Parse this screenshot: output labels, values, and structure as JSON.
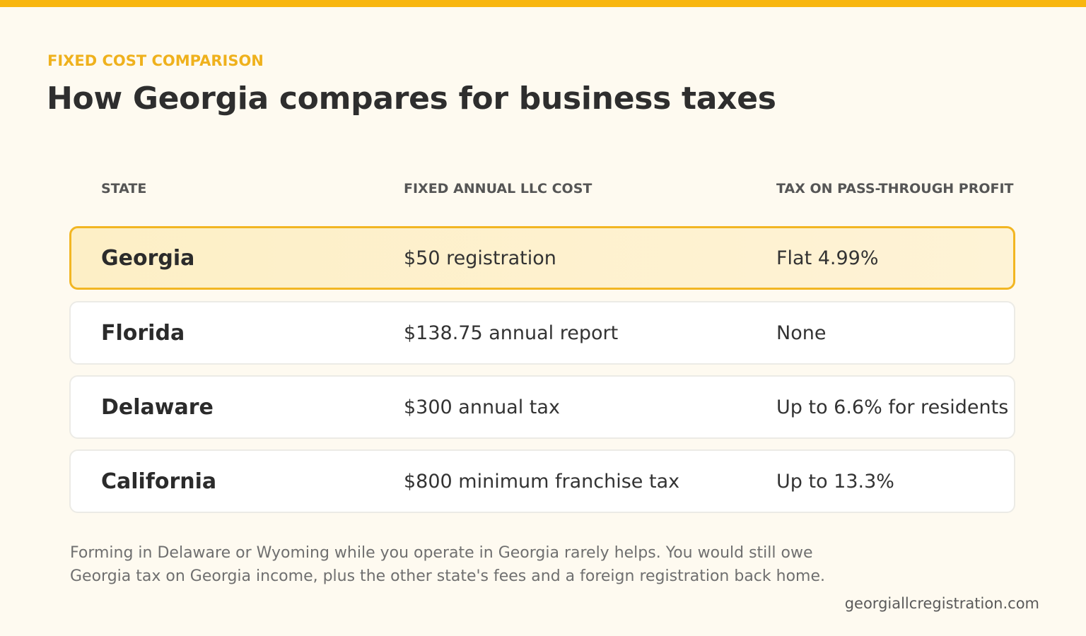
{
  "eyebrow": "FIXED COST COMPARISON",
  "title": "How Georgia compares for business taxes",
  "colors": {
    "accent": "#f8b60f",
    "eyebrow": "#efb11d",
    "highlight_border": "#f2b623",
    "highlight_fill": "#fdefc6",
    "background": "#fefaf0"
  },
  "chart_data": {
    "type": "table",
    "columns": [
      "STATE",
      "FIXED ANNUAL LLC COST",
      "TAX ON PASS-THROUGH PROFIT"
    ],
    "rows": [
      {
        "state": "Georgia",
        "cost": "$50 registration",
        "tax": "Flat 4.99%",
        "highlighted": true
      },
      {
        "state": "Florida",
        "cost": "$138.75 annual report",
        "tax": "None",
        "highlighted": false
      },
      {
        "state": "Delaware",
        "cost": "$300 annual tax",
        "tax": "Up to 6.6% for residents",
        "highlighted": false
      },
      {
        "state": "California",
        "cost": "$800 minimum franchise tax",
        "tax": "Up to 13.3%",
        "highlighted": false
      }
    ]
  },
  "note": "Forming in Delaware or Wyoming while you operate in Georgia rarely helps. You would still owe Georgia tax on Georgia income, plus the other state's fees and a foreign registration back home.",
  "source": "georgiallcregistration.com"
}
